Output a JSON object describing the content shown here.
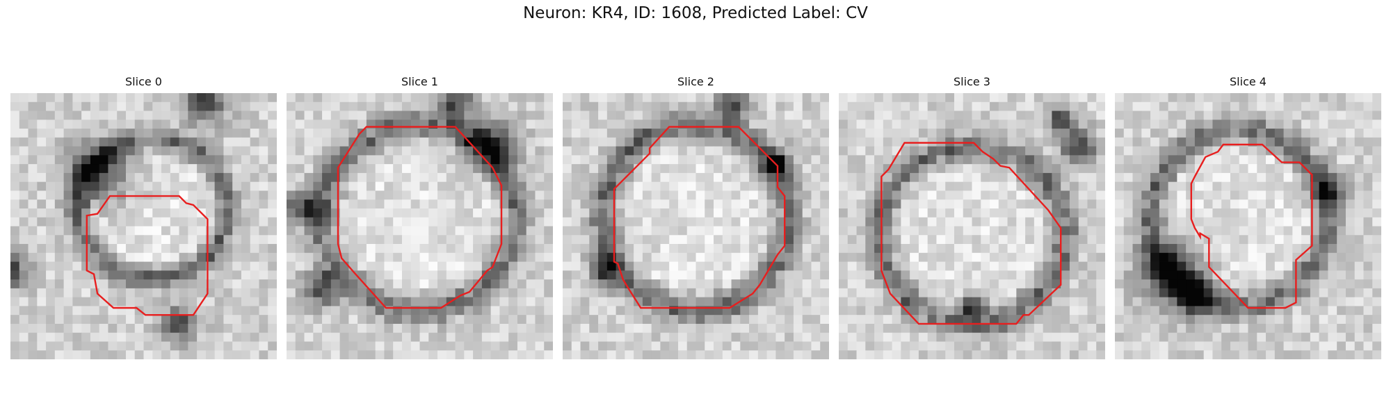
{
  "figure": {
    "title": "Neuron: KR4, ID: 1608, Predicted Label: CV"
  },
  "colors": {
    "contour": "#e81e1e",
    "background": "#ffffff"
  },
  "slices": [
    {
      "label": "Slice 0"
    },
    {
      "label": "Slice 1"
    },
    {
      "label": "Slice 2"
    },
    {
      "label": "Slice 3"
    },
    {
      "label": "Slice 4"
    }
  ]
}
